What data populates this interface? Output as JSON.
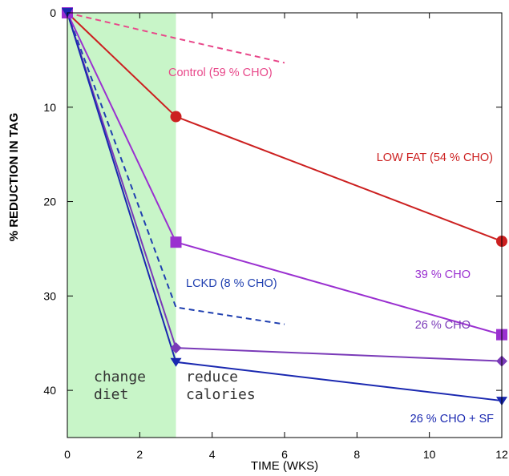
{
  "chart_data": {
    "type": "line",
    "title": "",
    "xlabel": "TIME (WKS)",
    "ylabel": "% REDUCTION IN TAG",
    "xlim": [
      0,
      12
    ],
    "ylim": [
      0,
      45
    ],
    "y_inverted": true,
    "xticks": [
      0,
      2,
      4,
      6,
      8,
      10,
      12
    ],
    "yticks": [
      0,
      10,
      20,
      30,
      40
    ],
    "grid": false,
    "shaded_region": {
      "x": [
        0,
        3
      ],
      "color": "#c8f5c8"
    },
    "phase_labels": [
      {
        "lines": [
          "change",
          "diet"
        ]
      },
      {
        "lines": [
          "reduce",
          "calories"
        ]
      }
    ],
    "series": [
      {
        "name": "Control (59 % CHO)",
        "color": "#e8488a",
        "style": "dashed",
        "marker": "none",
        "x": [
          0,
          3,
          6
        ],
        "y": [
          0,
          2.7,
          5.3
        ]
      },
      {
        "name": "LOW FAT (54 % CHO)",
        "color": "#cc2020",
        "style": "solid",
        "marker": "circle",
        "x": [
          0,
          3,
          12
        ],
        "y": [
          0,
          11,
          24.2
        ]
      },
      {
        "name": "LCKD (8 % CHO)",
        "color": "#1f3fb0",
        "style": "dashed",
        "marker": "none",
        "x": [
          0,
          3,
          6
        ],
        "y": [
          0,
          31.2,
          33
        ]
      },
      {
        "name": "39 % CHO",
        "color": "#9a30d0",
        "style": "solid",
        "marker": "square",
        "x": [
          0,
          3,
          12
        ],
        "y": [
          0,
          24.3,
          34.1
        ]
      },
      {
        "name": "26 % CHO",
        "color": "#7a3ab8",
        "style": "solid",
        "marker": "diamond",
        "x": [
          0,
          3,
          12
        ],
        "y": [
          0,
          35.5,
          36.9
        ]
      },
      {
        "name": "26 % CHO + SF",
        "color": "#1a28b0",
        "style": "solid",
        "marker": "triangle-down",
        "x": [
          0,
          3,
          12
        ],
        "y": [
          0,
          37,
          41.1
        ]
      }
    ]
  }
}
